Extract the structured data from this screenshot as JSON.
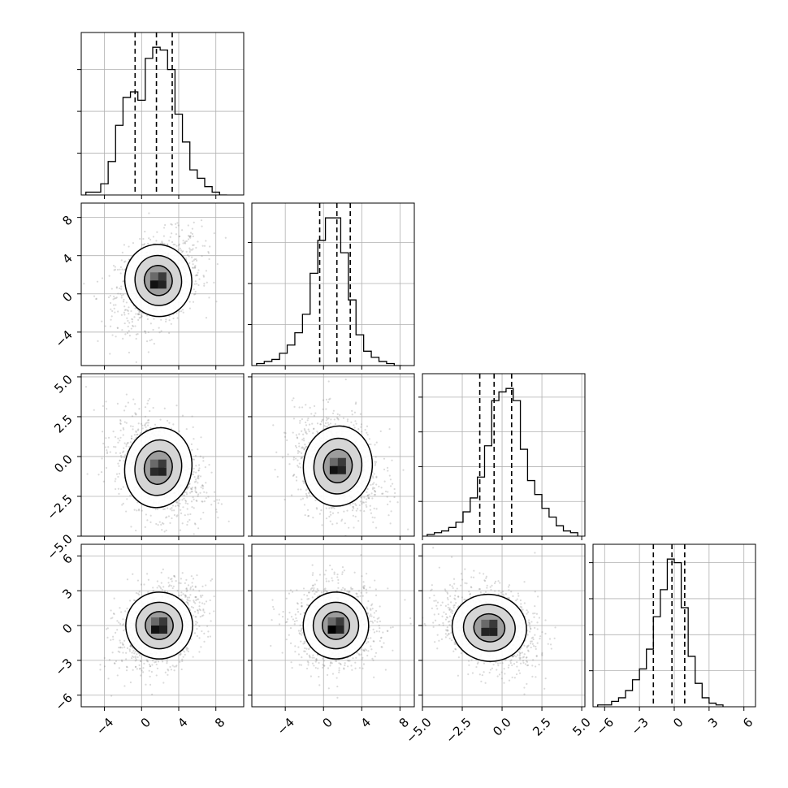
{
  "chart_data": {
    "type": "corner",
    "grid": true,
    "variables": [
      {
        "range": [
          -6.5,
          11.0
        ],
        "ticks": [
          -4,
          0,
          4,
          8
        ],
        "tick_labels": [
          "−4",
          "0",
          "4",
          "8"
        ],
        "quantiles": [
          -0.7,
          1.6,
          3.3
        ],
        "hist_bins": {
          "start": -6.0,
          "width": 0.8,
          "counts": [
            1,
            1,
            4,
            12,
            25,
            35,
            37,
            34,
            49,
            53,
            52,
            45,
            29,
            19,
            9,
            6,
            3,
            1,
            0
          ]
        }
      },
      {
        "range": [
          -7.5,
          9.5
        ],
        "ticks": [
          -4,
          0,
          4,
          8
        ],
        "tick_labels": [
          "−4",
          "0",
          "4",
          "8"
        ],
        "quantiles": [
          -0.4,
          1.4,
          2.8
        ],
        "hist_bins": {
          "start": -7.0,
          "width": 0.8,
          "counts": [
            1,
            2,
            3,
            6,
            10,
            16,
            25,
            45,
            61,
            72,
            72,
            55,
            32,
            15,
            7,
            4,
            2,
            1,
            0
          ]
        }
      },
      {
        "range": [
          -5.0,
          5.2
        ],
        "ticks": [
          -5.0,
          -2.5,
          0.0,
          2.5,
          5.0
        ],
        "tick_labels": [
          "−5.0",
          "−2.5",
          "0.0",
          "2.5",
          "5.0"
        ],
        "quantiles": [
          -1.4,
          -0.5,
          0.6
        ],
        "hist_bins": {
          "start": -4.7,
          "width": 0.45,
          "counts": [
            1,
            2,
            3,
            5,
            8,
            14,
            22,
            34,
            52,
            78,
            83,
            85,
            78,
            50,
            32,
            24,
            16,
            11,
            6,
            3,
            2
          ]
        }
      },
      {
        "range": [
          -7.0,
          7.0
        ],
        "ticks": [
          -6,
          -3,
          0,
          3,
          6
        ],
        "tick_labels": [
          "−6",
          "−3",
          "0",
          "3",
          "6"
        ],
        "quantiles": [
          -1.8,
          -0.2,
          0.9
        ],
        "hist_bins": {
          "start": -6.6,
          "width": 0.6,
          "counts": [
            1,
            1,
            3,
            5,
            9,
            15,
            21,
            32,
            50,
            65,
            82,
            80,
            55,
            28,
            13,
            5,
            2,
            1
          ]
        }
      }
    ],
    "pairs": [
      {
        "row": 1,
        "col": 0,
        "center": [
          1.8,
          1.4
        ],
        "sigma": [
          2.0,
          2.1
        ],
        "rho": 0.35,
        "peak_color": "#111111"
      },
      {
        "row": 2,
        "col": 0,
        "center": [
          1.8,
          -0.7
        ],
        "sigma": [
          2.0,
          1.4
        ],
        "rho": -0.35,
        "peak_color": "#2a2a2a"
      },
      {
        "row": 2,
        "col": 1,
        "center": [
          1.5,
          -0.6
        ],
        "sigma": [
          2.0,
          1.4
        ],
        "rho": -0.25,
        "peak_color": "#111111"
      },
      {
        "row": 3,
        "col": 0,
        "center": [
          1.9,
          0.0
        ],
        "sigma": [
          2.0,
          1.6
        ],
        "rho": 0.35,
        "peak_color": "#111111"
      },
      {
        "row": 3,
        "col": 1,
        "center": [
          1.3,
          0.0
        ],
        "sigma": [
          1.9,
          1.6
        ],
        "rho": 0.0,
        "peak_color": "#000000"
      },
      {
        "row": 3,
        "col": 2,
        "center": [
          -0.8,
          -0.2
        ],
        "sigma": [
          1.3,
          1.6
        ],
        "rho": -0.3,
        "peak_color": "#222222"
      }
    ]
  }
}
